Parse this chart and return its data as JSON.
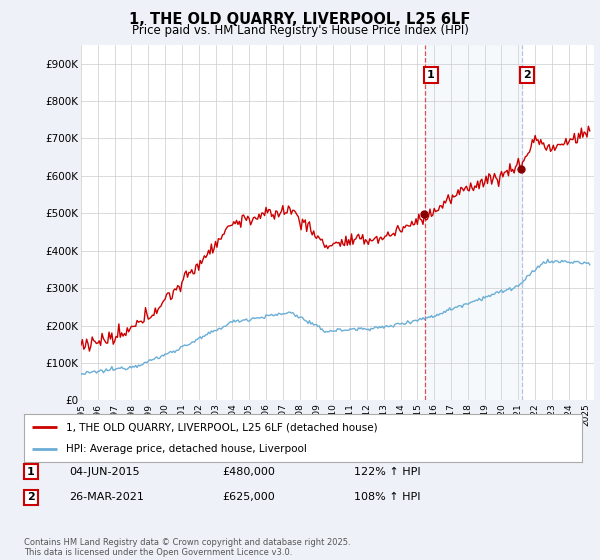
{
  "title": "1, THE OLD QUARRY, LIVERPOOL, L25 6LF",
  "subtitle": "Price paid vs. HM Land Registry's House Price Index (HPI)",
  "ylim": [
    0,
    950000
  ],
  "yticks": [
    0,
    100000,
    200000,
    300000,
    400000,
    500000,
    600000,
    700000,
    800000,
    900000
  ],
  "ytick_labels": [
    "£0",
    "£100K",
    "£200K",
    "£300K",
    "£400K",
    "£500K",
    "£600K",
    "£700K",
    "£800K",
    "£900K"
  ],
  "hpi_color": "#6baed6",
  "price_color": "#cc0000",
  "marker1_year": 2015.458,
  "marker1_price": 480000,
  "marker1_date": "04-JUN-2015",
  "marker1_hpi_pct": "122%",
  "marker2_year": 2021.208,
  "marker2_price": 625000,
  "marker2_date": "26-MAR-2021",
  "marker2_hpi_pct": "108%",
  "legend_label1": "1, THE OLD QUARRY, LIVERPOOL, L25 6LF (detached house)",
  "legend_label2": "HPI: Average price, detached house, Liverpool",
  "footer": "Contains HM Land Registry data © Crown copyright and database right 2025.\nThis data is licensed under the Open Government Licence v3.0.",
  "background_color": "#eef2f8",
  "plot_bg_color": "#ffffff",
  "grid_color": "#cccccc",
  "shade_color": "#dbe8f5"
}
